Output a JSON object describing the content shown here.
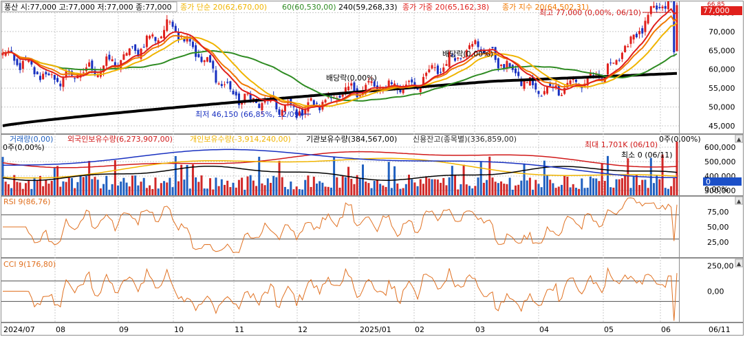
{
  "price_panel": {
    "header": "풍산 시:77,000 고:77,000 저:77,000 종:77,000",
    "ma_legend": [
      {
        "label": "종가 단순 20(62,670,00)",
        "color": "#f0b400"
      },
      {
        "label": "60(60,530,00)",
        "color": "#2e8b22"
      },
      {
        "label": "240(59,268,33)",
        "color": "#000000"
      },
      {
        "label": "종가 가중 20(65,162,38)",
        "color": "#e0201c"
      },
      {
        "label": "종가 지수 20(64,502,31)",
        "color": "#f07800"
      }
    ],
    "y_ticks": [
      "75,000",
      "70,000",
      "65,000",
      "60,000",
      "55,000",
      "50,000",
      "45,000"
    ],
    "current_price_tag": "77,000",
    "corner_label": "66,85",
    "annotations": {
      "high": "최고 77,000 (0,00%, 06/10)",
      "low": "최저 46,150 (66,85%, 12/09)",
      "dividend1": "배당락(0,00%)",
      "dividend2": "배당락(0,00%)"
    }
  },
  "volume_panel": {
    "legend": [
      {
        "label": "거래량(0,00)",
        "color": "#2060c0"
      },
      {
        "label": "외국인보유수량(6,273,907,00)",
        "color": "#d01818"
      },
      {
        "label": "개인보유수량(-3,914,240,00)",
        "color": "#f0b400"
      },
      {
        "label": "기관보유수량(384,567,00)",
        "color": "#000000"
      },
      {
        "label": "신용잔고(종목별)(336,859,00)",
        "color": "#2a2a2a"
      }
    ],
    "y_ticks": [
      "600,000",
      "500,000",
      "400,000",
      "300,000"
    ],
    "pct_ticks": [
      "0,00%"
    ],
    "value_tag": "0",
    "left_label": "0주(0,00%)",
    "right_top_label": "0주(0,00%)",
    "max_label": "최대 1,701K (06/10)",
    "min_label": "최소 0 (06/11)"
  },
  "rsi_panel": {
    "legend": "RSI 9(86,76)",
    "y_ticks": [
      "75,00",
      "50,00",
      "25,00"
    ]
  },
  "cci_panel": {
    "legend": "CCI 9(176,80)",
    "y_ticks": [
      "250,00",
      "0,00"
    ]
  },
  "x_axis": {
    "labels": [
      "2024/07",
      "08",
      "09",
      "10",
      "11",
      "12",
      "2025/01",
      "02",
      "03",
      "04",
      "05",
      "06",
      "06/11"
    ]
  },
  "colors": {
    "up": "#e0201c",
    "down": "#1830c0",
    "grid": "#c8c8c8",
    "panel_border": "#8c8c8c",
    "rsi_line": "#e07020",
    "rsi_fill_up": "#f0a878",
    "rsi_fill_down": "#6cc0e0"
  },
  "chart_data": [
    {
      "type": "candlestick",
      "title": "",
      "ylim": [
        43000,
        78000
      ],
      "ticks": [
        75000,
        70000,
        65000,
        60000,
        55000,
        50000,
        45000
      ],
      "x_months": [
        "2024/07",
        "08",
        "09",
        "10",
        "11",
        "12",
        "2025/01",
        "02",
        "03",
        "04",
        "05",
        "06"
      ],
      "monthly_close_approx": [
        {
          "month": "2024/07",
          "close": 64000
        },
        {
          "month": "08",
          "close": 57000
        },
        {
          "month": "09",
          "close": 62000
        },
        {
          "month": "10",
          "close": 72000
        },
        {
          "month": "11",
          "close": 53000
        },
        {
          "month": "12",
          "close": 49000
        },
        {
          "month": "2025/01",
          "close": 55000
        },
        {
          "month": "02",
          "close": 56000
        },
        {
          "month": "03",
          "close": 67000
        },
        {
          "month": "04",
          "close": 54000
        },
        {
          "month": "05",
          "close": 58000
        },
        {
          "month": "06",
          "close": 77000
        }
      ],
      "high": {
        "value": 77000,
        "date": "06/10"
      },
      "low": {
        "value": 46150,
        "date": "12/09"
      },
      "series": [
        {
          "name": "종가 단순 20",
          "last": 62670
        },
        {
          "name": "60",
          "last": 60530
        },
        {
          "name": "240",
          "last": 59268.33
        },
        {
          "name": "종가 가중 20",
          "last": 65162.38
        },
        {
          "name": "종가 지수 20",
          "last": 64502.31
        }
      ]
    },
    {
      "type": "bar",
      "title": "",
      "ylim": [
        250000,
        650000
      ],
      "max": {
        "value": "1,701K",
        "date": "06/10"
      },
      "min": {
        "value": 0,
        "date": "06/11"
      }
    },
    {
      "type": "line",
      "title": "",
      "series": [
        {
          "name": "RSI 9",
          "last": 86.76
        }
      ],
      "ylim": [
        0,
        100
      ],
      "reference_lines": [
        70,
        30
      ]
    },
    {
      "type": "line",
      "title": "",
      "series": [
        {
          "name": "CCI 9",
          "last": 176.8
        }
      ],
      "ylim": [
        -300,
        320
      ],
      "reference_lines": [
        100,
        -100
      ]
    }
  ]
}
